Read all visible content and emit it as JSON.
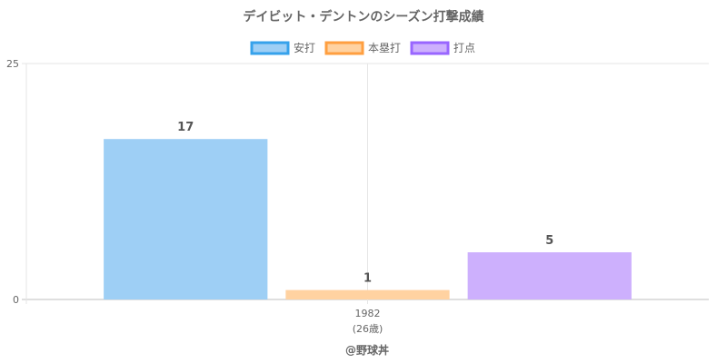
{
  "chart_data": {
    "type": "bar",
    "title": "デイビット・デントンのシーズン打撃成績",
    "categories": [
      "1982"
    ],
    "category_sublabels": [
      "(26歳)"
    ],
    "series": [
      {
        "name": "安打",
        "values": [
          17
        ],
        "fill": "#9ecff5",
        "stroke": "#36a2eb"
      },
      {
        "name": "本塁打",
        "values": [
          1
        ],
        "fill": "#ffd2a1",
        "stroke": "#ff9f40"
      },
      {
        "name": "打点",
        "values": [
          5
        ],
        "fill": "#cdb0fd",
        "stroke": "#9966ff"
      }
    ],
    "ylim": [
      0,
      25
    ],
    "yticks": [
      0,
      25
    ],
    "grid": true,
    "legend_position": "top"
  },
  "footer": "@野球丼"
}
